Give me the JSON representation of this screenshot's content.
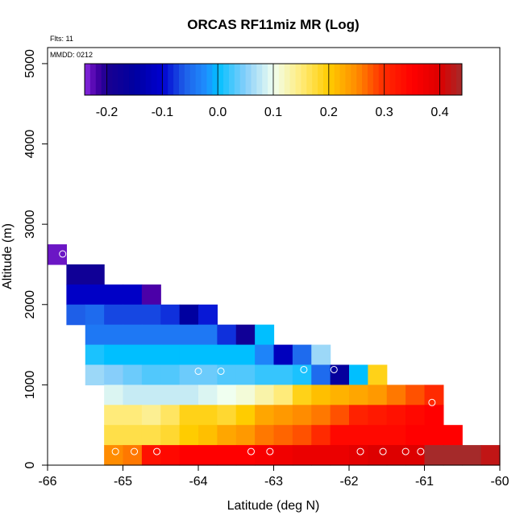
{
  "chart_data": {
    "type": "heatmap",
    "title": "ORCAS RF11miz MR (Log)",
    "annotations": {
      "flights": "Flts: 11",
      "date": "MMDD: 0212"
    },
    "xlabel": "Latitude (deg N)",
    "ylabel": "Altitude (m)",
    "xlim": [
      -66,
      -60
    ],
    "ylim": [
      0,
      5200
    ],
    "x_ticks": [
      -66,
      -65,
      -64,
      -63,
      -62,
      -61,
      -60
    ],
    "y_ticks": [
      0,
      1000,
      2000,
      3000,
      4000,
      5000
    ],
    "cell_size": {
      "lat_deg": 0.25,
      "alt_m": 250
    },
    "colorbar": {
      "range": [
        -0.24,
        0.44
      ],
      "ticks": [
        -0.2,
        -0.1,
        0.0,
        0.1,
        0.2,
        0.3,
        0.4
      ],
      "tick_labels": [
        "-0.2",
        "-0.1",
        "0.0",
        "0.1",
        "0.2",
        "0.3",
        "0.4"
      ],
      "stops": [
        {
          "v": -0.24,
          "color": "#8a2be2"
        },
        {
          "v": -0.22,
          "color": "#4b00a8"
        },
        {
          "v": -0.2,
          "color": "#1a0090"
        },
        {
          "v": -0.15,
          "color": "#0000a0"
        },
        {
          "v": -0.1,
          "color": "#0000d0"
        },
        {
          "v": -0.06,
          "color": "#1e5fe8"
        },
        {
          "v": -0.02,
          "color": "#1e90ff"
        },
        {
          "v": 0.0,
          "color": "#00bfff"
        },
        {
          "v": 0.05,
          "color": "#87cefa"
        },
        {
          "v": 0.1,
          "color": "#f0fff0"
        },
        {
          "v": 0.15,
          "color": "#ffeb7a"
        },
        {
          "v": 0.2,
          "color": "#ffcc00"
        },
        {
          "v": 0.25,
          "color": "#ff8c00"
        },
        {
          "v": 0.3,
          "color": "#ff2a00"
        },
        {
          "v": 0.35,
          "color": "#ff0000"
        },
        {
          "v": 0.4,
          "color": "#dd0000"
        },
        {
          "v": 0.44,
          "color": "#a52a2a"
        }
      ]
    },
    "rows": [
      {
        "alt": 2500,
        "lat_start": -66.0,
        "values": [
          -0.23
        ]
      },
      {
        "alt": 2250,
        "lat_start": -65.75,
        "values": [
          -0.18,
          -0.18
        ]
      },
      {
        "alt": 2000,
        "lat_start": -65.75,
        "values": [
          -0.11,
          -0.11,
          -0.11,
          -0.11,
          -0.22
        ]
      },
      {
        "alt": 1750,
        "lat_start": -65.75,
        "values": [
          -0.06,
          -0.05,
          -0.07,
          -0.07,
          -0.07,
          -0.08,
          -0.15,
          -0.09
        ]
      },
      {
        "alt": 1500,
        "lat_start": -65.5,
        "values": [
          -0.04,
          -0.04,
          -0.04,
          -0.04,
          -0.04,
          -0.04,
          -0.04,
          -0.08,
          -0.18,
          0.0
        ]
      },
      {
        "alt": 1250,
        "lat_start": -65.5,
        "values": [
          0.01,
          0.0,
          0.0,
          0.0,
          0.0,
          0.0,
          0.0,
          0.0,
          0.0,
          -0.03,
          -0.12,
          -0.05,
          0.06
        ]
      },
      {
        "alt": 1000,
        "lat_start": -65.5,
        "values": [
          0.06,
          0.05,
          0.04,
          0.03,
          0.03,
          0.04,
          0.04,
          0.03,
          0.03,
          0.02,
          0.02,
          0.01,
          -0.05,
          -0.16,
          0.0,
          0.19
        ]
      },
      {
        "alt": 750,
        "lat_start": -65.25,
        "values": [
          0.09,
          0.08,
          0.08,
          0.08,
          0.08,
          0.09,
          0.1,
          0.11,
          0.13,
          0.15,
          0.19,
          0.21,
          0.22,
          0.23,
          0.24,
          0.26,
          0.28,
          0.3
        ]
      },
      {
        "alt": 500,
        "lat_start": -65.25,
        "values": [
          0.15,
          0.15,
          0.14,
          0.16,
          0.19,
          0.19,
          0.18,
          0.2,
          0.23,
          0.24,
          0.25,
          0.26,
          0.28,
          0.31,
          0.32,
          0.33,
          0.34,
          0.35
        ]
      },
      {
        "alt": 250,
        "lat_start": -65.25,
        "values": [
          0.17,
          0.17,
          0.17,
          0.18,
          0.2,
          0.21,
          0.23,
          0.24,
          0.26,
          0.27,
          0.28,
          0.3,
          0.34,
          0.34,
          0.34,
          0.34,
          0.35,
          0.35,
          0.35
        ]
      },
      {
        "alt": 0,
        "lat_start": -65.25,
        "values": [
          0.25,
          0.26,
          0.33,
          0.34,
          0.35,
          0.35,
          0.35,
          0.35,
          0.36,
          0.37,
          0.38,
          0.38,
          0.38,
          0.39,
          0.4,
          0.4,
          0.4,
          0.44,
          0.44,
          0.44,
          0.42
        ]
      }
    ],
    "markers": [
      {
        "lat": -65.1,
        "alt": 170
      },
      {
        "lat": -64.85,
        "alt": 170
      },
      {
        "lat": -64.55,
        "alt": 170
      },
      {
        "lat": -63.3,
        "alt": 170
      },
      {
        "lat": -63.05,
        "alt": 170
      },
      {
        "lat": -61.85,
        "alt": 170
      },
      {
        "lat": -61.55,
        "alt": 170
      },
      {
        "lat": -61.25,
        "alt": 170
      },
      {
        "lat": -61.05,
        "alt": 170
      },
      {
        "lat": -65.8,
        "alt": 2630
      },
      {
        "lat": -64.0,
        "alt": 1170
      },
      {
        "lat": -63.7,
        "alt": 1170
      },
      {
        "lat": -62.6,
        "alt": 1190
      },
      {
        "lat": -62.2,
        "alt": 1190
      },
      {
        "lat": -60.9,
        "alt": 780
      }
    ]
  }
}
